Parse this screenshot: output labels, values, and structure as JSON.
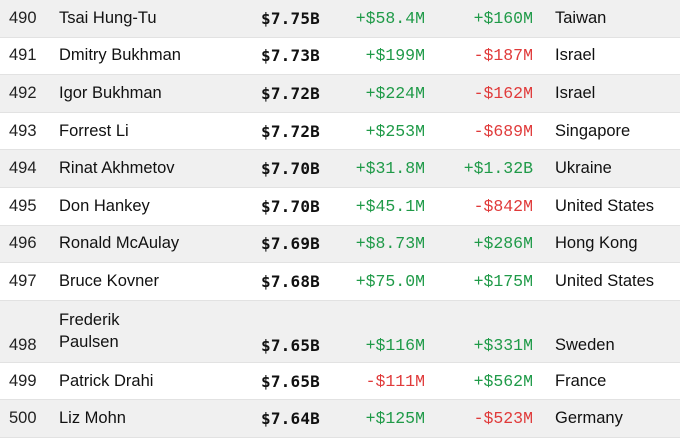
{
  "rows": [
    {
      "rank": "490",
      "name": "Tsai Hung-Tu",
      "worth": "$7.75B",
      "last_change": "+$58.4M",
      "ytd_change": "+$160M",
      "country": "Taiwan"
    },
    {
      "rank": "491",
      "name": "Dmitry Bukhman",
      "worth": "$7.73B",
      "last_change": "+$199M",
      "ytd_change": "-$187M",
      "country": "Israel"
    },
    {
      "rank": "492",
      "name": "Igor Bukhman",
      "worth": "$7.72B",
      "last_change": "+$224M",
      "ytd_change": "-$162M",
      "country": "Israel"
    },
    {
      "rank": "493",
      "name": "Forrest Li",
      "worth": "$7.72B",
      "last_change": "+$253M",
      "ytd_change": "-$689M",
      "country": "Singapore"
    },
    {
      "rank": "494",
      "name": "Rinat Akhmetov",
      "worth": "$7.70B",
      "last_change": "+$31.8M",
      "ytd_change": "+$1.32B",
      "country": "Ukraine"
    },
    {
      "rank": "495",
      "name": "Don Hankey",
      "worth": "$7.70B",
      "last_change": "+$45.1M",
      "ytd_change": "-$842M",
      "country": "United States"
    },
    {
      "rank": "496",
      "name": "Ronald McAulay",
      "worth": "$7.69B",
      "last_change": "+$8.73M",
      "ytd_change": "+$286M",
      "country": "Hong Kong"
    },
    {
      "rank": "497",
      "name": "Bruce Kovner",
      "worth": "$7.68B",
      "last_change": "+$75.0M",
      "ytd_change": "+$175M",
      "country": "United States"
    },
    {
      "rank": "498",
      "name": "Frederik Paulsen",
      "worth": "$7.65B",
      "last_change": "+$116M",
      "ytd_change": "+$331M",
      "country": "Sweden"
    },
    {
      "rank": "499",
      "name": "Patrick Drahi",
      "worth": "$7.65B",
      "last_change": "-$111M",
      "ytd_change": "+$562M",
      "country": "France"
    },
    {
      "rank": "500",
      "name": "Liz Mohn",
      "worth": "$7.64B",
      "last_change": "+$125M",
      "ytd_change": "-$523M",
      "country": "Germany"
    }
  ],
  "colors": {
    "positive": "#1f9a48",
    "negative": "#e03a3a",
    "row_alt_background": "#f0f0f0"
  }
}
